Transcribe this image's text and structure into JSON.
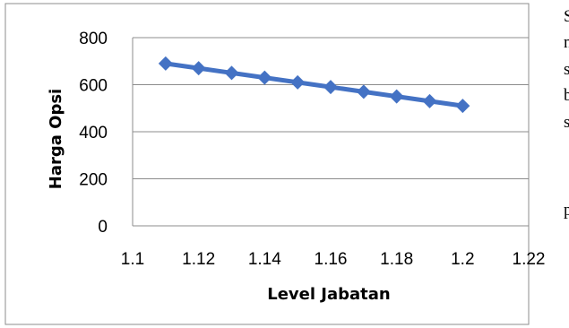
{
  "chart_data": {
    "type": "line",
    "title": "",
    "xlabel": "Level Jabatan",
    "ylabel": "Harga Opsi",
    "xlim": [
      1.1,
      1.22
    ],
    "ylim": [
      0,
      800
    ],
    "x_ticks": [
      "1.1",
      "1.12",
      "1.14",
      "1.16",
      "1.18",
      "1.2",
      "1.22"
    ],
    "y_ticks": [
      "0",
      "200",
      "400",
      "600",
      "800"
    ],
    "grid": "horizontal",
    "legend": "none",
    "marker": "diamond",
    "color": "#4472C4",
    "x": [
      1.11,
      1.12,
      1.13,
      1.14,
      1.15,
      1.16,
      1.17,
      1.18,
      1.19,
      1.2
    ],
    "y": [
      690,
      670,
      650,
      630,
      610,
      590,
      570,
      550,
      530,
      510
    ]
  },
  "side_text": {
    "lines": [
      "S",
      "n",
      "s",
      "b",
      "s",
      "p"
    ]
  }
}
